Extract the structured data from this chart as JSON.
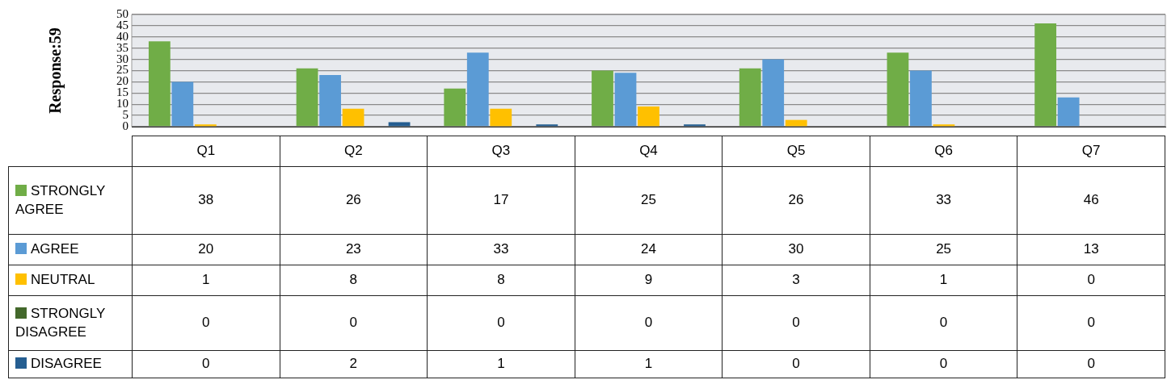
{
  "chart_data": {
    "type": "bar",
    "ylabel": "Response:59",
    "categories": [
      "Q1",
      "Q2",
      "Q3",
      "Q4",
      "Q5",
      "Q6",
      "Q7"
    ],
    "series": [
      {
        "name": "STRONGLY AGREE",
        "color": "#70ad47",
        "values": [
          38,
          26,
          17,
          25,
          26,
          33,
          46
        ]
      },
      {
        "name": "AGREE",
        "color": "#5b9bd5",
        "values": [
          20,
          23,
          33,
          24,
          30,
          25,
          13
        ]
      },
      {
        "name": "NEUTRAL",
        "color": "#ffc000",
        "values": [
          1,
          8,
          8,
          9,
          3,
          1,
          0
        ]
      },
      {
        "name": "STRONGLY DISAGREE",
        "color": "#43682b",
        "values": [
          0,
          0,
          0,
          0,
          0,
          0,
          0
        ]
      },
      {
        "name": "DISAGREE",
        "color": "#255e91",
        "values": [
          0,
          2,
          1,
          1,
          0,
          0,
          0
        ]
      }
    ],
    "ylim": [
      0,
      50
    ],
    "yticks": [
      0,
      5,
      10,
      15,
      20,
      25,
      30,
      35,
      40,
      45,
      50
    ],
    "grid": "y",
    "legend": "bottom",
    "data_labels": true
  }
}
